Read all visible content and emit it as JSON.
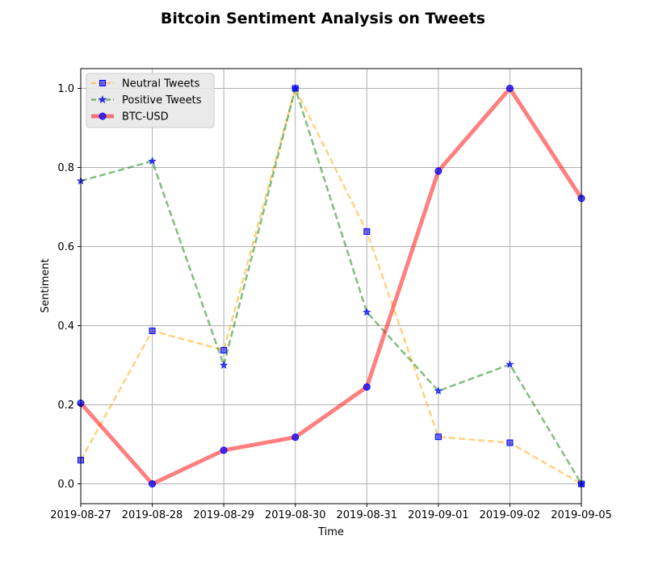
{
  "chart_data": {
    "type": "line",
    "title": "Bitcoin Sentiment Analysis on Tweets",
    "xlabel": "Time",
    "ylabel": "Sentiment",
    "x": [
      "2019-08-27",
      "2019-08-28",
      "2019-08-29",
      "2019-08-30",
      "2019-08-31",
      "2019-09-01",
      "2019-09-02",
      "2019-09-05"
    ],
    "ylim": [
      -0.05,
      1.05
    ],
    "yticks": [
      "0.0",
      "0.2",
      "0.4",
      "0.6",
      "0.8",
      "1.0"
    ],
    "grid": true,
    "legend_position": "top-left",
    "series": [
      {
        "name": "Neutral Tweets",
        "values": [
          0.06,
          0.387,
          0.338,
          1.0,
          0.638,
          0.119,
          0.104,
          0.0
        ],
        "line_color": "#ffa500",
        "marker_color": "#0000ff",
        "marker": "square",
        "linestyle": "dashed"
      },
      {
        "name": "Positive Tweets",
        "values": [
          0.766,
          0.816,
          0.3,
          1.0,
          0.434,
          0.235,
          0.302,
          0.0
        ],
        "line_color": "#008000",
        "marker_color": "#0000ff",
        "marker": "star",
        "linestyle": "dashed"
      },
      {
        "name": "BTC-USD",
        "values": [
          0.204,
          0.0,
          0.085,
          0.118,
          0.245,
          0.791,
          1.0,
          0.722
        ],
        "line_color": "#ff0000",
        "marker_color": "#0000ff",
        "marker": "circle",
        "linestyle": "solid"
      }
    ]
  }
}
